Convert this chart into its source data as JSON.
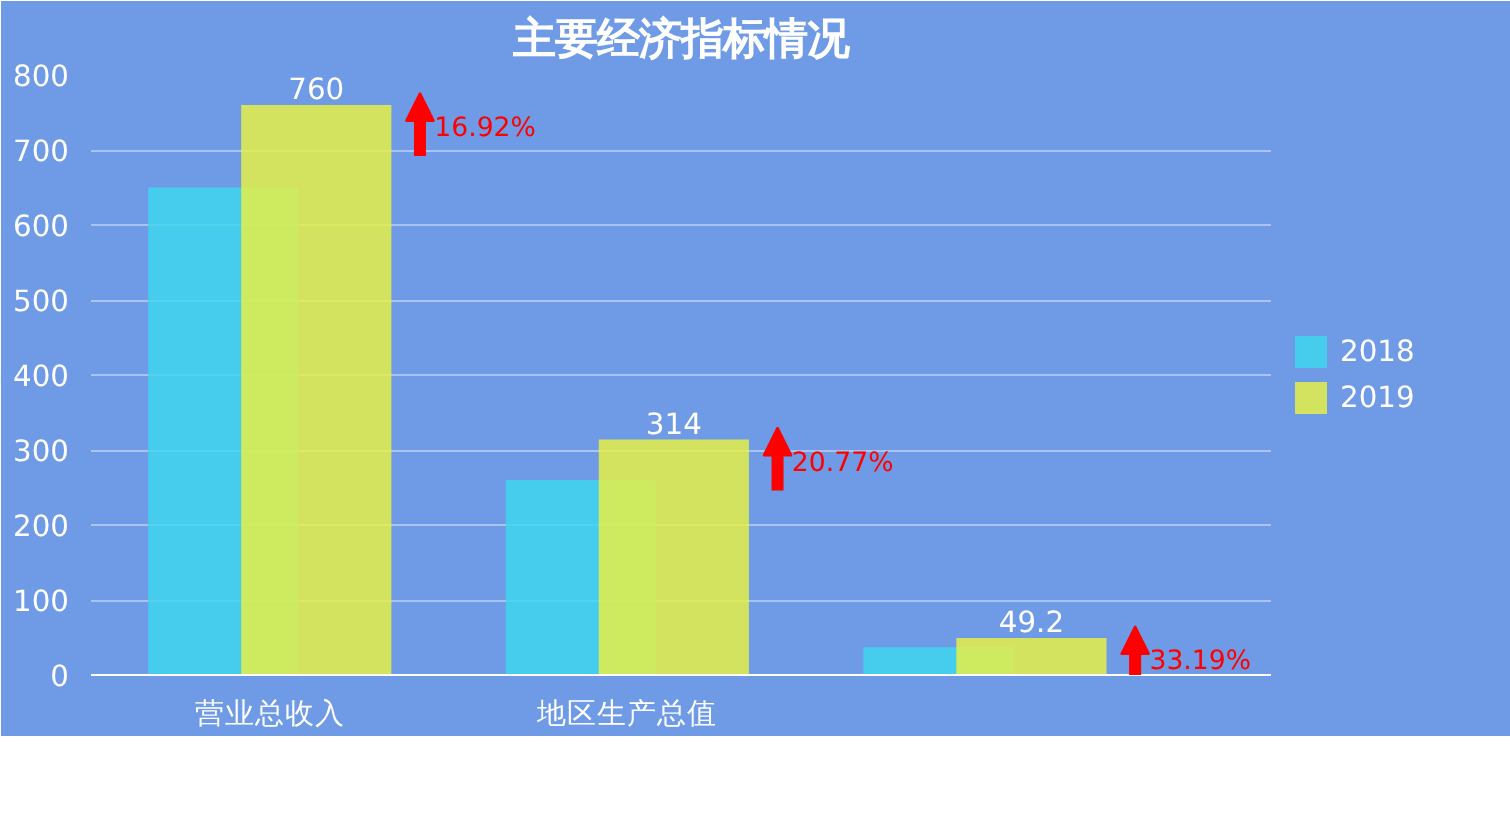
{
  "chart_data": {
    "type": "bar",
    "title": "主要经济指标情况",
    "categories": [
      "营业总收入",
      "地区生产总值",
      null
    ],
    "series": [
      {
        "name": "2018",
        "color": "#3fd6ee",
        "values": [
          650,
          260,
          37
        ]
      },
      {
        "name": "2019",
        "color": "#e6f046",
        "values": [
          760,
          314,
          49.2
        ],
        "value_labels": [
          "760",
          "314",
          "49.2"
        ]
      }
    ],
    "ylim": [
      0,
      800
    ],
    "yticks": [
      0,
      100,
      200,
      300,
      400,
      500,
      600,
      700,
      800
    ],
    "grid": "y",
    "legend": "right",
    "annotations": [
      "16.92%",
      "20.77%",
      "33.19%"
    ]
  }
}
